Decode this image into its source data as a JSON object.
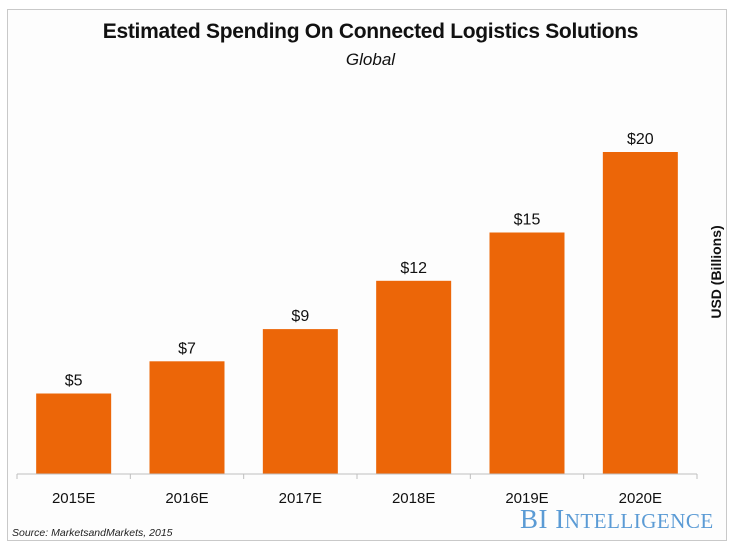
{
  "chart_data": {
    "type": "bar",
    "title": "Estimated Spending On Connected Logistics Solutions",
    "subtitle": "Global",
    "categories": [
      "2015E",
      "2016E",
      "2017E",
      "2018E",
      "2019E",
      "2020E"
    ],
    "values": [
      5,
      7,
      9,
      12,
      15,
      20
    ],
    "data_labels": [
      "$5",
      "$7",
      "$9",
      "$12",
      "$15",
      "$20"
    ],
    "xlabel": "",
    "ylabel": "USD (Billions)",
    "ylim": [
      0,
      20
    ],
    "grid": false,
    "legend": "none",
    "bar_color": "#ec6608"
  },
  "source": "Source: MarketsandMarkets, 2015",
  "brand": {
    "first": "BI ",
    "cap": "I",
    "rest": "NTELLIGENCE",
    "color": "#5b9bd5"
  }
}
